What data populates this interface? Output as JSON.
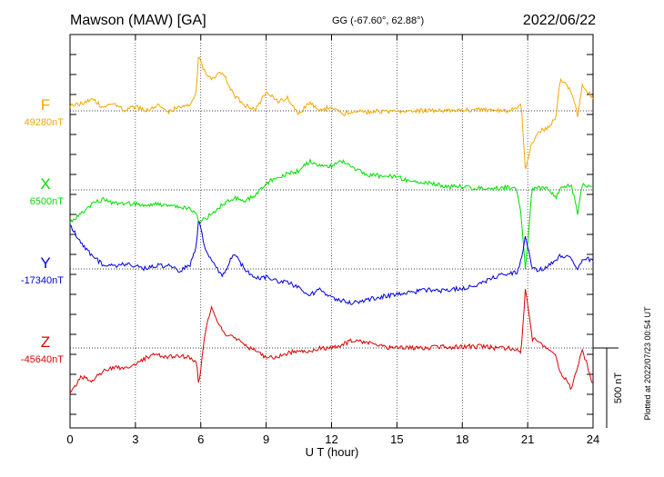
{
  "header": {
    "station": "Mawson (MAW)  [GA]",
    "coords": "GG (-67.60°,  62.88°)",
    "date": "2022/06/22"
  },
  "footer": {
    "plotted": "Plotted at 2022/07/23 00:54 UT"
  },
  "chart_data": {
    "type": "line",
    "xlabel": "U T (hour)",
    "xlim": [
      0,
      24
    ],
    "x_ticks": [
      "0",
      "3",
      "6",
      "9",
      "12",
      "15",
      "18",
      "21",
      "24"
    ],
    "scale_bar": {
      "label": "500 nT",
      "value_nT": 500
    },
    "grid": true,
    "x": [
      0,
      0.5,
      1,
      1.5,
      2,
      2.5,
      3,
      3.5,
      4,
      4.5,
      5,
      5.5,
      5.8,
      5.9,
      6.2,
      6.5,
      7,
      7.5,
      8,
      8.5,
      9,
      9.5,
      10,
      10.5,
      11,
      11.5,
      12,
      12.5,
      13,
      13.5,
      14,
      14.5,
      15,
      15.5,
      16,
      16.5,
      17,
      17.5,
      18,
      18.5,
      19,
      19.5,
      20,
      20.5,
      20.7,
      20.9,
      21.2,
      21.5,
      22,
      22.3,
      22.5,
      23,
      23.3,
      23.5,
      24
    ],
    "series": [
      {
        "name": "F",
        "baseline": "49280nT",
        "color": "#f5a800",
        "values": [
          30,
          45,
          80,
          20,
          45,
          5,
          25,
          0,
          40,
          -5,
          30,
          25,
          120,
          350,
          240,
          200,
          250,
          100,
          40,
          0,
          120,
          60,
          80,
          -20,
          50,
          0,
          30,
          -25,
          0,
          -10,
          0,
          -5,
          0,
          0,
          0,
          0,
          5,
          5,
          5,
          5,
          5,
          5,
          0,
          20,
          40,
          -380,
          -200,
          -130,
          -100,
          -30,
          200,
          120,
          -30,
          160,
          80
        ]
      },
      {
        "name": "X",
        "baseline": "6500nT",
        "color": "#00dd00",
        "values": [
          -200,
          -150,
          -90,
          -60,
          -85,
          -80,
          -90,
          -100,
          -85,
          -100,
          -110,
          -120,
          -140,
          -200,
          -180,
          -150,
          -90,
          -50,
          -70,
          -30,
          40,
          80,
          100,
          120,
          180,
          150,
          150,
          180,
          140,
          100,
          90,
          85,
          80,
          60,
          50,
          40,
          30,
          20,
          20,
          10,
          10,
          10,
          15,
          0,
          -150,
          -500,
          5,
          10,
          5,
          -50,
          20,
          30,
          -150,
          30,
          20
        ]
      },
      {
        "name": "Y",
        "baseline": "-17340nT",
        "color": "#0000dd",
        "values": [
          280,
          160,
          80,
          30,
          20,
          30,
          20,
          0,
          20,
          20,
          -10,
          20,
          150,
          320,
          130,
          60,
          -50,
          100,
          0,
          -60,
          -50,
          -80,
          -80,
          -120,
          -160,
          -130,
          -180,
          -200,
          -210,
          -200,
          -180,
          -170,
          -160,
          -150,
          -140,
          -130,
          -140,
          -130,
          -120,
          -110,
          -80,
          -50,
          -30,
          -20,
          50,
          200,
          10,
          -10,
          20,
          60,
          80,
          70,
          0,
          60,
          60
        ]
      },
      {
        "name": "Z",
        "baseline": "-45640nT",
        "color": "#dd0000",
        "values": [
          -280,
          -180,
          -200,
          -150,
          -120,
          -130,
          -100,
          -60,
          -40,
          -60,
          -50,
          -60,
          -80,
          -230,
          100,
          250,
          100,
          70,
          20,
          -20,
          -60,
          -60,
          -30,
          -20,
          -20,
          0,
          0,
          20,
          50,
          30,
          30,
          0,
          0,
          0,
          0,
          0,
          10,
          5,
          10,
          10,
          10,
          0,
          0,
          -10,
          -30,
          380,
          60,
          40,
          -20,
          -50,
          -150,
          -250,
          -120,
          -10,
          -230
        ]
      }
    ]
  }
}
